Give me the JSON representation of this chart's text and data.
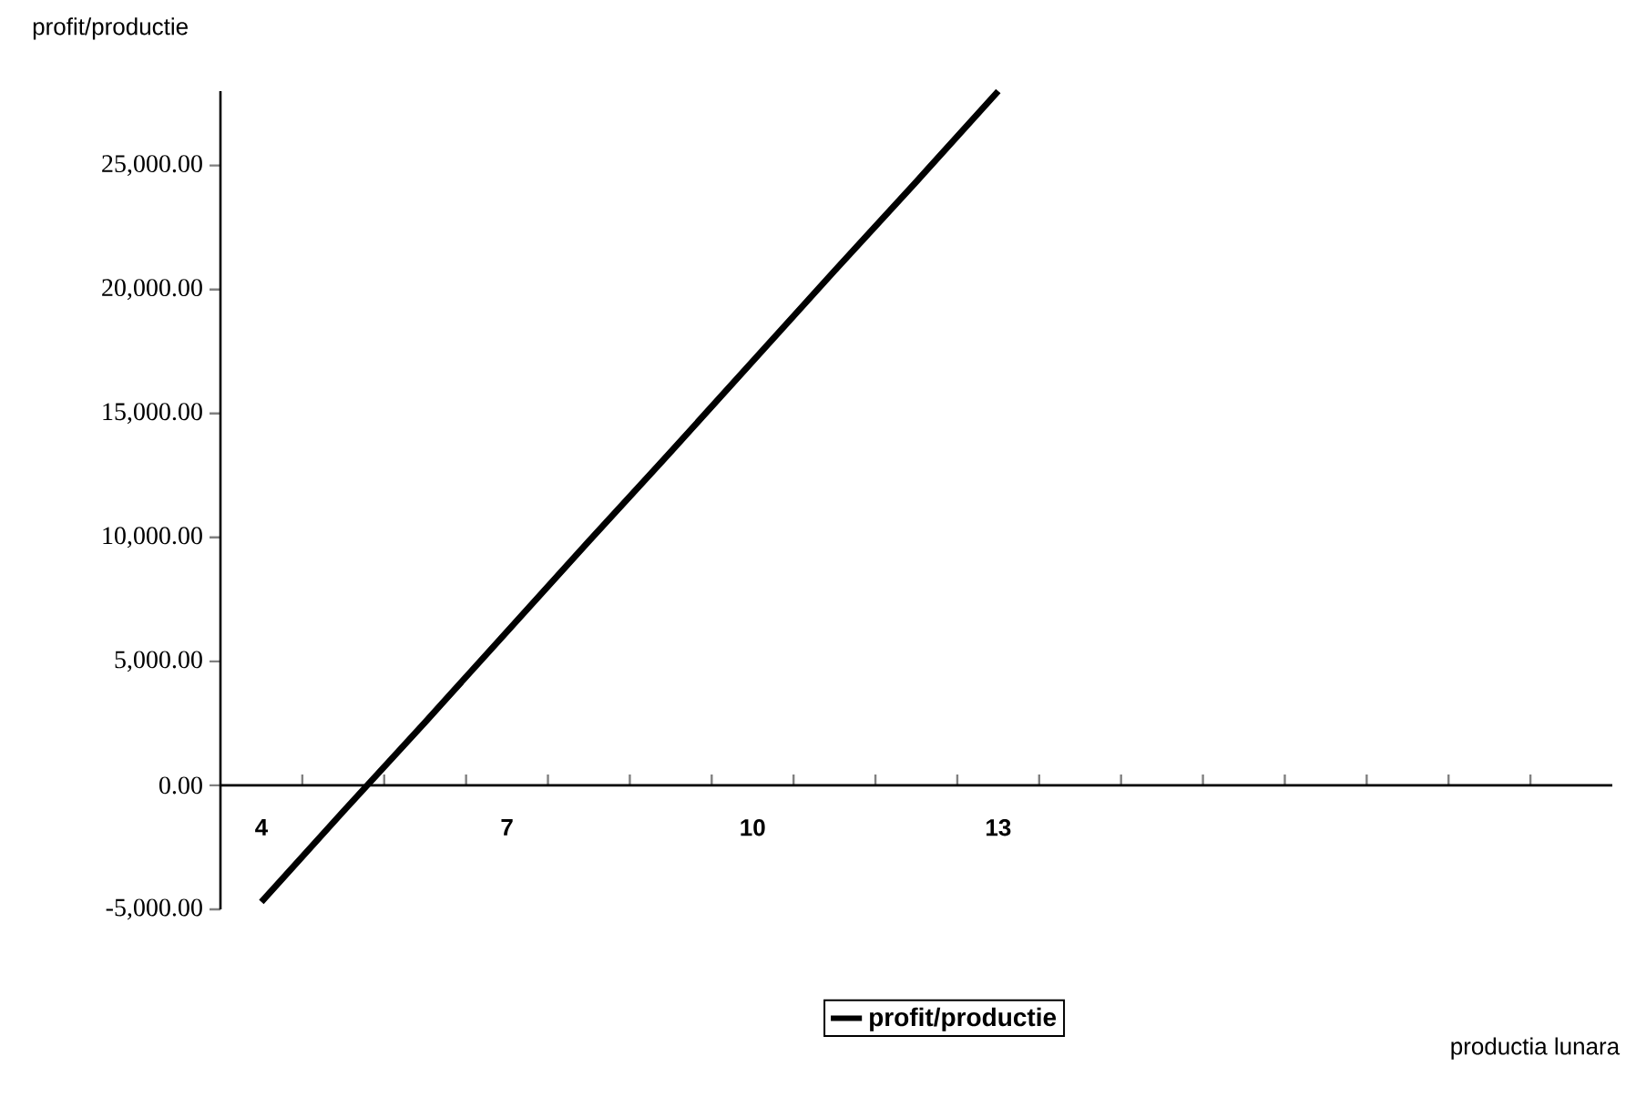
{
  "chart_data": {
    "type": "line",
    "xlabel": "productia lunara",
    "ylabel": "profit/productie",
    "categories": [
      "4",
      null,
      null,
      "7",
      null,
      null,
      "10",
      null,
      null,
      "13",
      null,
      null,
      null,
      null,
      null,
      null,
      null
    ],
    "series": [
      {
        "name": "profit/productie",
        "color": "#000000",
        "values": [
          -4700,
          -1050,
          2550,
          6200,
          9850,
          13450,
          17100,
          20750,
          24350,
          28000,
          null,
          null,
          null,
          null,
          null,
          null,
          null
        ]
      }
    ],
    "ylim": [
      -5000,
      28000
    ],
    "yticks": [
      {
        "value": -5000,
        "label": "-5,000.00"
      },
      {
        "value": 0,
        "label": "0.00"
      },
      {
        "value": 5000,
        "label": "5,000.00"
      },
      {
        "value": 10000,
        "label": "10,000.00"
      },
      {
        "value": 15000,
        "label": "15,000.00"
      },
      {
        "value": 20000,
        "label": "20,000.00"
      },
      {
        "value": 25000,
        "label": "25,000.00"
      }
    ],
    "grid": false,
    "legend": "bottom",
    "marker": "none",
    "line_style": "solid"
  }
}
